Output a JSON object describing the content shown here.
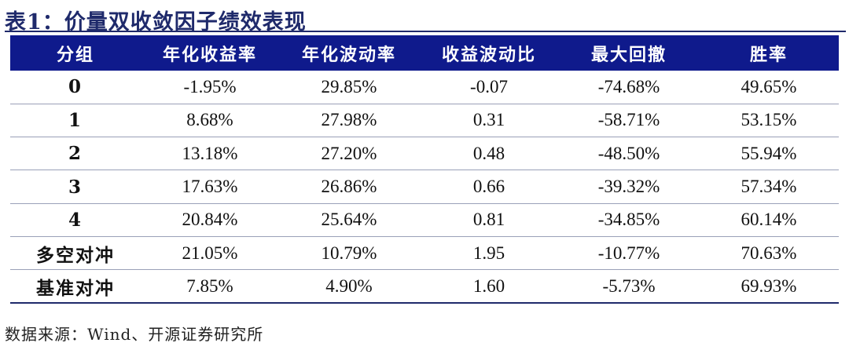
{
  "title": "表1：价量双收敛因子绩效表现",
  "table": {
    "headers": [
      "分组",
      "年化收益率",
      "年化波动率",
      "收益波动比",
      "最大回撤",
      "胜率"
    ],
    "rows": [
      [
        "0",
        "-1.95%",
        "29.85%",
        "-0.07",
        "-74.68%",
        "49.65%"
      ],
      [
        "1",
        "8.68%",
        "27.98%",
        "0.31",
        "-58.71%",
        "53.15%"
      ],
      [
        "2",
        "13.18%",
        "27.20%",
        "0.48",
        "-48.50%",
        "55.94%"
      ],
      [
        "3",
        "17.63%",
        "26.86%",
        "0.66",
        "-39.32%",
        "57.34%"
      ],
      [
        "4",
        "20.84%",
        "25.64%",
        "0.81",
        "-34.85%",
        "60.14%"
      ],
      [
        "多空对冲",
        "21.05%",
        "10.79%",
        "1.95",
        "-10.77%",
        "70.63%"
      ],
      [
        "基准对冲",
        "7.85%",
        "4.90%",
        "1.60",
        "-5.73%",
        "69.93%"
      ]
    ]
  },
  "source": "数据来源：Wind、开源证券研究所",
  "colors": {
    "header_bg": "#0f1a8c",
    "title": "#1f2a6b"
  }
}
